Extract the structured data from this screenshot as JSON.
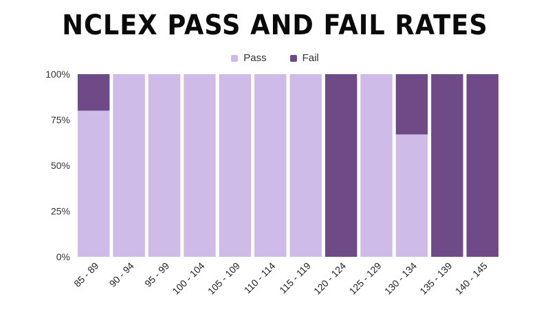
{
  "chart_data": {
    "type": "bar",
    "stacked": true,
    "title": "NCLEX PASS AND FAIL RATES",
    "xlabel": "",
    "ylabel": "",
    "ylim": [
      0,
      100
    ],
    "y_ticks": [
      "0%",
      "25%",
      "50%",
      "75%",
      "100%"
    ],
    "legend_position": "top-center",
    "grid": false,
    "categories": [
      "85 - 89",
      "90 - 94",
      "95 - 99",
      "100 - 104",
      "105 - 109",
      "110 - 114",
      "115 - 119",
      "120 - 124",
      "125 - 129",
      "130 - 134",
      "135 - 139",
      "140 - 145"
    ],
    "series": [
      {
        "name": "Pass",
        "color": "#cfbbe8",
        "values": [
          80,
          100,
          100,
          100,
          100,
          100,
          100,
          0,
          100,
          67,
          0,
          0
        ]
      },
      {
        "name": "Fail",
        "color": "#6e4a87",
        "values": [
          20,
          0,
          0,
          0,
          0,
          0,
          0,
          100,
          0,
          33,
          100,
          100
        ]
      }
    ]
  }
}
